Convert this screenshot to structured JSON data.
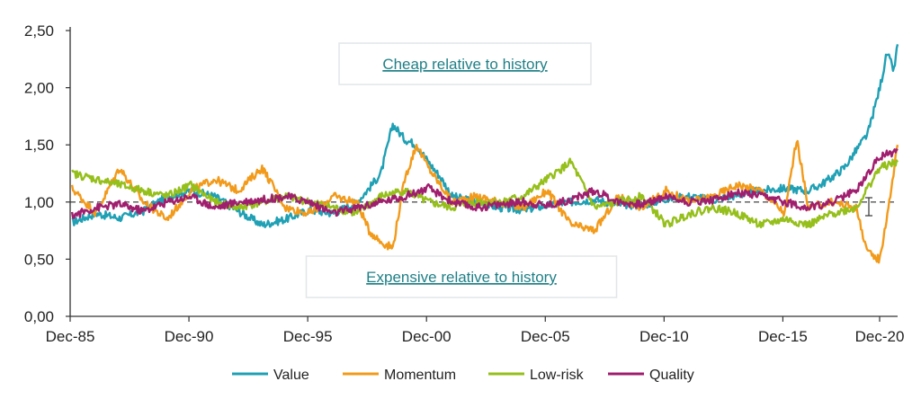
{
  "chart_data": {
    "type": "line",
    "title": "",
    "xlabel": "",
    "ylabel": "",
    "ylim": [
      0,
      2.5
    ],
    "xlim": [
      1985.92,
      2020.75
    ],
    "yticks": [
      {
        "value": 0,
        "label": "0,00"
      },
      {
        "value": 0.5,
        "label": "0,50"
      },
      {
        "value": 1,
        "label": "1,00"
      },
      {
        "value": 1.5,
        "label": "1,50"
      },
      {
        "value": 2,
        "label": "2,00"
      },
      {
        "value": 2.5,
        "label": "2,50"
      }
    ],
    "xticks": [
      {
        "value": 1985.92,
        "label": "Dec-85"
      },
      {
        "value": 1990.92,
        "label": "Dec-90"
      },
      {
        "value": 1995.92,
        "label": "Dec-95"
      },
      {
        "value": 2000.92,
        "label": "Dec-00"
      },
      {
        "value": 2005.92,
        "label": "Dec-05"
      },
      {
        "value": 2010.92,
        "label": "Dec-10"
      },
      {
        "value": 2015.92,
        "label": "Dec-15"
      },
      {
        "value": 2020.92,
        "label": "Dec-20"
      }
    ],
    "reference_line": 1.0,
    "grid": false,
    "legend_position": "bottom",
    "annotations": [
      {
        "text": "Cheap relative to history"
      },
      {
        "text": "Expensive relative to history"
      }
    ],
    "series": [
      {
        "name": "Value",
        "color": "#1fa0b4",
        "x": [
          1986,
          1987,
          1988,
          1989,
          1990,
          1991,
          1992,
          1993,
          1994,
          1995,
          1996,
          1997,
          1998,
          1998.5,
          1999,
          1999.5,
          2000,
          2000.5,
          2001,
          2001.5,
          2002,
          2003,
          2004,
          2005,
          2006,
          2007,
          2008,
          2009,
          2010,
          2011,
          2012,
          2013,
          2014,
          2015,
          2016,
          2017,
          2017.5,
          2018,
          2018.5,
          2019,
          2019.5,
          2020,
          2020.3,
          2020.6,
          2020.75
        ],
        "y": [
          0.82,
          0.9,
          0.86,
          0.92,
          1.05,
          1.1,
          1.05,
          0.92,
          0.8,
          0.85,
          0.93,
          0.9,
          1.0,
          1.12,
          1.25,
          1.68,
          1.55,
          1.5,
          1.35,
          1.22,
          1.05,
          1.0,
          0.95,
          0.93,
          0.97,
          1.0,
          1.02,
          0.98,
          0.97,
          1.03,
          1.05,
          1.02,
          1.06,
          1.1,
          1.12,
          1.1,
          1.15,
          1.22,
          1.3,
          1.45,
          1.6,
          2.0,
          2.3,
          2.15,
          2.38
        ]
      },
      {
        "name": "Momentum",
        "color": "#f29a1a",
        "x": [
          1986,
          1987,
          1988,
          1989,
          1990,
          1991,
          1992,
          1993,
          1994,
          1995,
          1996,
          1997,
          1998,
          1998.5,
          1999,
          1999.5,
          2000,
          2000.5,
          2001,
          2002,
          2003,
          2004,
          2005,
          2006,
          2007,
          2008,
          2009,
          2010,
          2011,
          2012,
          2013,
          2014,
          2015,
          2016,
          2016.5,
          2017,
          2018,
          2019,
          2019.5,
          2020,
          2020.4,
          2020.75
        ],
        "y": [
          1.12,
          0.9,
          1.3,
          1.0,
          0.85,
          1.1,
          1.2,
          1.1,
          1.3,
          0.95,
          0.9,
          1.05,
          1.0,
          0.75,
          0.65,
          0.6,
          1.2,
          1.5,
          1.3,
          1.0,
          1.05,
          1.0,
          0.95,
          1.1,
          0.8,
          0.75,
          1.05,
          0.95,
          1.1,
          1.0,
          1.05,
          1.15,
          1.1,
          0.9,
          1.55,
          0.95,
          1.0,
          0.95,
          0.55,
          0.5,
          1.0,
          1.5
        ]
      },
      {
        "name": "Low-risk",
        "color": "#95bf1a",
        "x": [
          1986,
          1987,
          1988,
          1989,
          1990,
          1991,
          1992,
          1993,
          1994,
          1995,
          1996,
          1997,
          1998,
          1999,
          2000,
          2001,
          2002,
          2003,
          2004,
          2005,
          2006,
          2007,
          2008,
          2009,
          2010,
          2011,
          2012,
          2013,
          2014,
          2015,
          2016,
          2017,
          2018,
          2019,
          2020,
          2020.75
        ],
        "y": [
          1.25,
          1.2,
          1.15,
          1.1,
          1.05,
          1.15,
          1.0,
          0.95,
          1.0,
          1.05,
          1.0,
          0.95,
          0.9,
          1.05,
          1.1,
          1.0,
          0.95,
          1.0,
          1.0,
          1.05,
          1.2,
          1.35,
          0.95,
          1.0,
          1.05,
          0.8,
          0.9,
          0.95,
          0.9,
          0.8,
          0.85,
          0.8,
          0.9,
          0.95,
          1.3,
          1.35
        ]
      },
      {
        "name": "Quality",
        "color": "#a01e6e",
        "x": [
          1986,
          1987,
          1988,
          1989,
          1990,
          1991,
          1992,
          1993,
          1994,
          1995,
          1996,
          1997,
          1998,
          1999,
          2000,
          2001,
          2002,
          2003,
          2004,
          2005,
          2006,
          2007,
          2008,
          2009,
          2010,
          2011,
          2012,
          2013,
          2014,
          2015,
          2016,
          2017,
          2018,
          2019,
          2020,
          2020.75
        ],
        "y": [
          0.88,
          0.95,
          0.98,
          0.92,
          1.0,
          1.05,
          0.95,
          1.0,
          1.02,
          1.05,
          1.0,
          0.9,
          0.95,
          1.0,
          1.05,
          1.12,
          1.0,
          0.95,
          0.98,
          1.0,
          0.97,
          1.02,
          1.1,
          1.0,
          0.98,
          1.05,
          1.0,
          1.02,
          1.08,
          1.05,
          1.0,
          0.95,
          1.0,
          1.1,
          1.4,
          1.45
        ]
      }
    ]
  }
}
